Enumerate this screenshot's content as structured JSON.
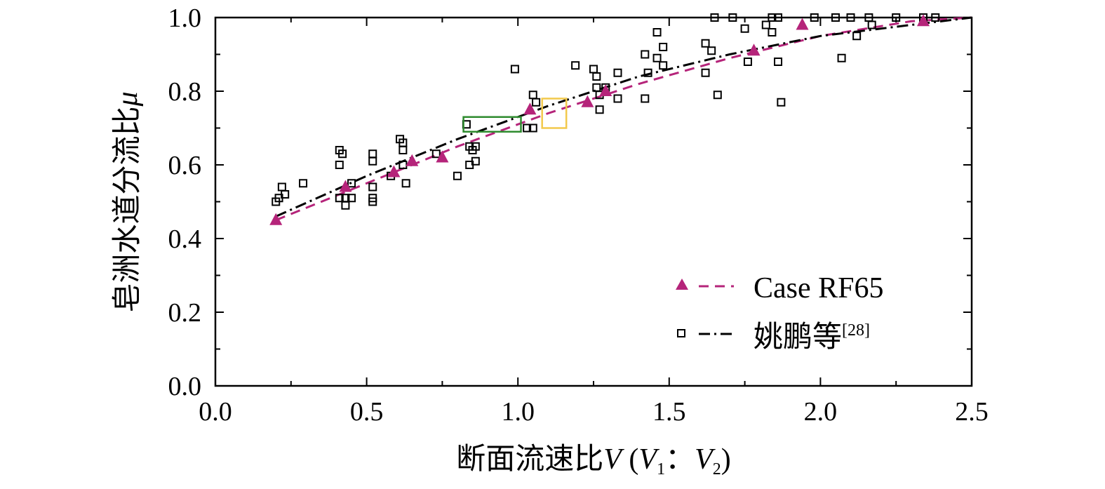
{
  "chart_data": {
    "type": "scatter",
    "title": "",
    "xlabel": "断面流速比V (V1：V2)",
    "xlabel_parts": {
      "main": "断面流速比",
      "var": "V",
      "open": " (",
      "v1": "V",
      "sub1": "1",
      "sep": "：",
      "v2": "V",
      "sub2": "2",
      "close": ")"
    },
    "ylabel": "皂洲水道分流比μ",
    "ylabel_parts": {
      "main": "皂洲水道分流比",
      "var": "μ"
    },
    "xlim": [
      0.0,
      2.5
    ],
    "ylim": [
      0.0,
      1.0
    ],
    "x_ticks": [
      "0.0",
      "0.5",
      "1.0",
      "1.5",
      "2.0",
      "2.5"
    ],
    "y_ticks": [
      "0.0",
      "0.2",
      "0.4",
      "0.6",
      "0.8",
      "1.0"
    ],
    "grid": false,
    "legend_position": "bottom-right",
    "series": [
      {
        "name": "Case RF65",
        "marker": "triangle",
        "color": "#b5247a",
        "line_style": "dashed",
        "points": [
          [
            0.2,
            0.45
          ],
          [
            0.43,
            0.54
          ],
          [
            0.59,
            0.58
          ],
          [
            0.65,
            0.61
          ],
          [
            0.75,
            0.62
          ],
          [
            1.04,
            0.75
          ],
          [
            1.23,
            0.77
          ],
          [
            1.29,
            0.8
          ],
          [
            1.78,
            0.91
          ],
          [
            1.94,
            0.98
          ],
          [
            2.34,
            0.99
          ]
        ],
        "fit": [
          [
            0.2,
            0.45
          ],
          [
            0.5,
            0.55
          ],
          [
            0.8,
            0.65
          ],
          [
            1.1,
            0.74
          ],
          [
            1.4,
            0.82
          ],
          [
            1.7,
            0.89
          ],
          [
            2.0,
            0.95
          ],
          [
            2.3,
            0.99
          ],
          [
            2.5,
            1.0
          ]
        ]
      },
      {
        "name": "姚鹏等",
        "name_suffix": "[28]",
        "marker": "square-open",
        "color": "#000000",
        "line_style": "dashdot",
        "points": [
          [
            0.2,
            0.5
          ],
          [
            0.21,
            0.51
          ],
          [
            0.22,
            0.54
          ],
          [
            0.23,
            0.52
          ],
          [
            0.29,
            0.55
          ],
          [
            0.41,
            0.64
          ],
          [
            0.42,
            0.63
          ],
          [
            0.41,
            0.6
          ],
          [
            0.41,
            0.51
          ],
          [
            0.43,
            0.51
          ],
          [
            0.43,
            0.49
          ],
          [
            0.45,
            0.51
          ],
          [
            0.45,
            0.55
          ],
          [
            0.52,
            0.63
          ],
          [
            0.52,
            0.61
          ],
          [
            0.52,
            0.54
          ],
          [
            0.52,
            0.51
          ],
          [
            0.52,
            0.5
          ],
          [
            0.58,
            0.57
          ],
          [
            0.61,
            0.67
          ],
          [
            0.62,
            0.66
          ],
          [
            0.62,
            0.64
          ],
          [
            0.62,
            0.6
          ],
          [
            0.63,
            0.55
          ],
          [
            0.73,
            0.63
          ],
          [
            0.8,
            0.57
          ],
          [
            0.83,
            0.71
          ],
          [
            0.84,
            0.65
          ],
          [
            0.85,
            0.64
          ],
          [
            0.86,
            0.65
          ],
          [
            0.86,
            0.61
          ],
          [
            0.84,
            0.6
          ],
          [
            0.99,
            0.86
          ],
          [
            1.03,
            0.7
          ],
          [
            1.05,
            0.79
          ],
          [
            1.05,
            0.7
          ],
          [
            1.06,
            0.77
          ],
          [
            1.19,
            0.87
          ],
          [
            1.25,
            0.86
          ],
          [
            1.26,
            0.84
          ],
          [
            1.26,
            0.81
          ],
          [
            1.27,
            0.79
          ],
          [
            1.27,
            0.75
          ],
          [
            1.29,
            0.81
          ],
          [
            1.33,
            0.85
          ],
          [
            1.33,
            0.78
          ],
          [
            1.42,
            0.9
          ],
          [
            1.42,
            0.78
          ],
          [
            1.43,
            0.85
          ],
          [
            1.46,
            0.96
          ],
          [
            1.46,
            0.89
          ],
          [
            1.48,
            0.92
          ],
          [
            1.48,
            0.87
          ],
          [
            1.62,
            0.93
          ],
          [
            1.62,
            0.85
          ],
          [
            1.64,
            0.91
          ],
          [
            1.66,
            0.79
          ],
          [
            1.65,
            1.0
          ],
          [
            1.71,
            1.0
          ],
          [
            1.75,
            0.97
          ],
          [
            1.76,
            0.88
          ],
          [
            1.82,
            0.98
          ],
          [
            1.84,
            1.0
          ],
          [
            1.84,
            0.96
          ],
          [
            1.86,
            1.0
          ],
          [
            1.86,
            0.88
          ],
          [
            1.87,
            0.77
          ],
          [
            1.98,
            1.0
          ],
          [
            2.05,
            1.0
          ],
          [
            2.07,
            0.89
          ],
          [
            2.1,
            1.0
          ],
          [
            2.12,
            0.95
          ],
          [
            2.16,
            1.0
          ],
          [
            2.17,
            0.98
          ],
          [
            2.25,
            1.0
          ],
          [
            2.34,
            1.0
          ],
          [
            2.38,
            1.0
          ]
        ],
        "fit": [
          [
            0.2,
            0.46
          ],
          [
            0.5,
            0.57
          ],
          [
            0.8,
            0.67
          ],
          [
            1.1,
            0.76
          ],
          [
            1.4,
            0.84
          ],
          [
            1.7,
            0.9
          ],
          [
            2.0,
            0.95
          ],
          [
            2.3,
            0.98
          ],
          [
            2.5,
            1.0
          ]
        ]
      }
    ],
    "annotations": [
      {
        "shape": "rect",
        "color": "#2e8b2e",
        "x": [
          0.82,
          1.01
        ],
        "y": [
          0.69,
          0.73
        ]
      },
      {
        "shape": "rect",
        "color": "#f2c94c",
        "x": [
          1.08,
          1.16
        ],
        "y": [
          0.7,
          0.78
        ]
      }
    ]
  }
}
